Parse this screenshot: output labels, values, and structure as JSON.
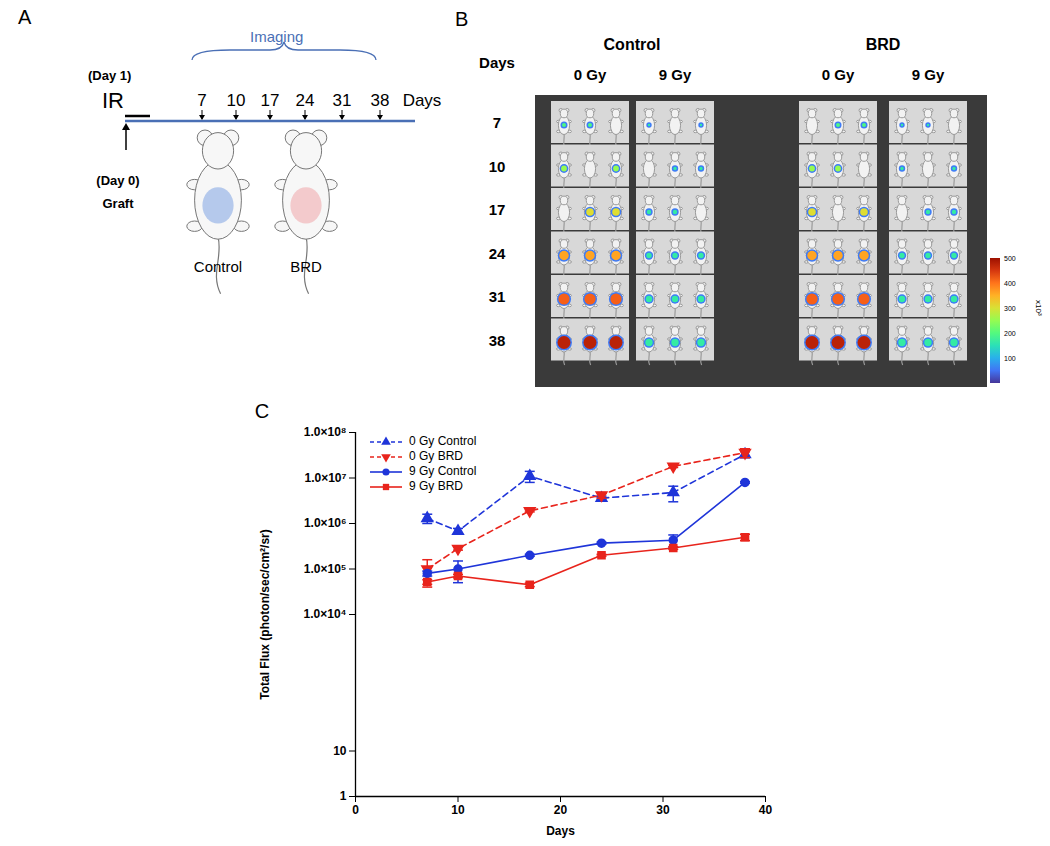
{
  "chart_data": {
    "type": "line",
    "panel_label": "C",
    "x": [
      7,
      10,
      17,
      24,
      31,
      38
    ],
    "xlim": [
      0,
      40
    ],
    "xticks": [
      0,
      10,
      20,
      30,
      40
    ],
    "x_label": "Days",
    "y_label": "Total Flux (photon/sec/cm²/sr)",
    "log": "y",
    "ylim": [
      1,
      100000000
    ],
    "yticks": [
      1,
      10,
      {
        "value": 10000,
        "label": "1.0×10⁴"
      },
      {
        "value": 100000,
        "label": "1.0×10⁵"
      },
      {
        "value": 1000000,
        "label": "1.0×10⁶"
      },
      {
        "value": 10000000,
        "label": "1.0×10⁷"
      },
      {
        "value": 100000000,
        "label": "1.0×10⁸"
      }
    ],
    "grid": false,
    "legend": "top-left",
    "series": [
      {
        "name": "0 Gy Control",
        "color": "#1f35d9",
        "marker": "triangle-up",
        "line_style": "dashed",
        "values": [
          1300000,
          680000,
          11000000,
          3600000,
          4800000,
          33000000
        ],
        "errors": [
          300000,
          100000,
          3000000,
          400000,
          1800000,
          5000000
        ]
      },
      {
        "name": "0 Gy BRD",
        "color": "#e8241c",
        "marker": "triangle-down",
        "line_style": "dashed",
        "values": [
          100000,
          280000,
          1900000,
          4200000,
          18000000,
          36000000
        ],
        "errors": [
          60000,
          20000,
          100000,
          600000,
          1000000,
          8000000
        ]
      },
      {
        "name": "9 Gy Control",
        "color": "#1f35d9",
        "marker": "circle",
        "line_style": "solid",
        "values": [
          80000,
          100000,
          200000,
          370000,
          430000,
          8000000
        ],
        "errors": [
          10000,
          50000,
          10000,
          20000,
          130000,
          300000
        ]
      },
      {
        "name": "9 Gy BRD",
        "color": "#e8241c",
        "marker": "square",
        "line_style": "solid",
        "values": [
          52000,
          70000,
          45000,
          200000,
          290000,
          500000
        ],
        "errors": [
          6000,
          6000,
          4000,
          10000,
          20000,
          80000
        ]
      }
    ]
  },
  "panel_a": {
    "letter": "A",
    "imaging": "Imaging",
    "ir_day": "(Day 1)",
    "ir": "IR",
    "days": [
      7,
      10,
      17,
      24,
      31,
      38
    ],
    "days_label": "Days",
    "graft_day": "(Day 0)",
    "graft": "Graft",
    "groups": [
      {
        "label": "Control",
        "color": "#a9c1ea"
      },
      {
        "label": "BRD",
        "color": "#f2c2c4"
      }
    ]
  },
  "panel_b": {
    "letter": "B",
    "days_label": "Days",
    "groups": [
      {
        "label": "Control",
        "doses": [
          "0 Gy",
          "9 Gy"
        ]
      },
      {
        "label": "BRD",
        "doses": [
          "0 Gy",
          "9 Gy"
        ]
      }
    ],
    "days": [
      7,
      10,
      17,
      24,
      31,
      38
    ],
    "colorbar": {
      "ticks": [
        500,
        400,
        300,
        200,
        100
      ],
      "label": "x10³"
    }
  }
}
